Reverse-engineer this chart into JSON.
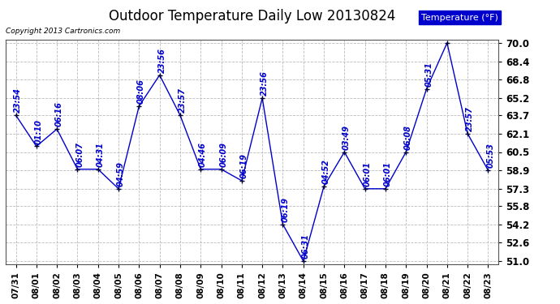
{
  "title": "Outdoor Temperature Daily Low 20130824",
  "copyright": "Copyright 2013 Cartronics.com",
  "legend_label": "Temperature (°F)",
  "dates": [
    "07/31",
    "08/01",
    "08/02",
    "08/03",
    "08/04",
    "08/05",
    "08/06",
    "08/07",
    "08/08",
    "08/09",
    "08/10",
    "08/11",
    "08/12",
    "08/13",
    "08/14",
    "08/15",
    "08/16",
    "08/17",
    "08/18",
    "08/19",
    "08/20",
    "08/21",
    "08/22",
    "08/23"
  ],
  "temps": [
    63.7,
    61.0,
    62.5,
    59.0,
    59.0,
    57.3,
    64.5,
    67.2,
    63.7,
    59.0,
    59.0,
    58.0,
    65.2,
    54.2,
    51.0,
    57.5,
    60.5,
    57.3,
    57.3,
    60.5,
    66.0,
    70.0,
    62.1,
    58.9
  ],
  "time_labels": [
    "23:54",
    "01:10",
    "06:16",
    "06:07",
    "04:31",
    "04:59",
    "08:06",
    "23:56",
    "23:57",
    "04:46",
    "06:09",
    "06:19",
    "23:56",
    "06:19",
    "06:31",
    "04:52",
    "03:49",
    "06:01",
    "06:01",
    "06:08",
    "05:31",
    "",
    "23:57",
    "05:53"
  ],
  "ylim": [
    51.0,
    70.0
  ],
  "yticks": [
    51.0,
    52.6,
    54.2,
    55.8,
    57.3,
    58.9,
    60.5,
    62.1,
    63.7,
    65.2,
    66.8,
    68.4,
    70.0
  ],
  "line_color": "#0000cc",
  "marker_color": "#000033",
  "bg_color": "#ffffff",
  "grid_color": "#bbbbbb",
  "title_fontsize": 12,
  "label_fontsize": 7,
  "tick_fontsize": 7.5,
  "legend_bg": "#0000cc",
  "legend_fg": "#ffffff"
}
